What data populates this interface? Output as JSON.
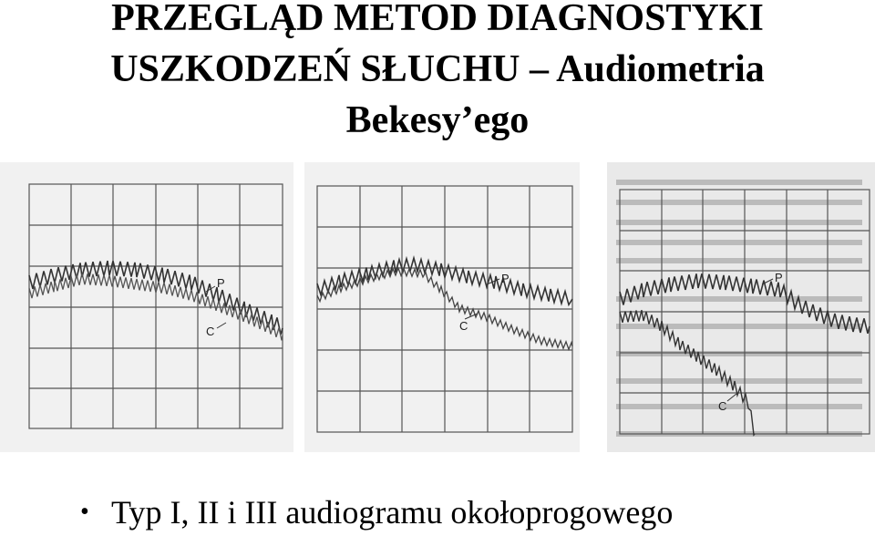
{
  "slide": {
    "title_line1": "PRZEGLĄD METOD DIAGNOSTYKI",
    "title_line2": "USZKODZEŃ SŁUCHU – Audiometria",
    "title_line3": "Bekesy’ego",
    "bullet": "Typ I, II i III audiogramu okołoprogowego"
  },
  "audiograms": [
    {
      "label_p": "P",
      "label_c": "C"
    },
    {
      "label_p": "P",
      "label_c": "C"
    },
    {
      "label_p": "P",
      "label_c": "C"
    }
  ]
}
